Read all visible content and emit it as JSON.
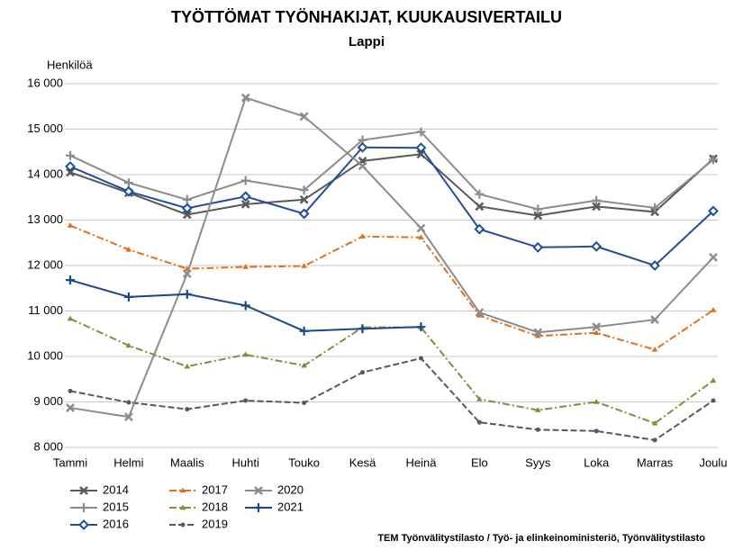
{
  "chart_data": {
    "type": "line",
    "title": "TYÖTTÖMAT TYÖNHAKIJAT, KUUKAUSIVERTAILU",
    "subtitle": "Lappi",
    "y_label": "Henkilöä",
    "source": "TEM Työnvälitystilasto / Työ- ja elinkeinoministeriö, Työnvälitystilasto",
    "categories": [
      "Tammi",
      "Helmi",
      "Maalis",
      "Huhti",
      "Touko",
      "Kesä",
      "Heinä",
      "Elo",
      "Syys",
      "Loka",
      "Marras",
      "Joulu"
    ],
    "ylim": [
      8000,
      16000
    ],
    "yticks": [
      {
        "value": 8000,
        "label": "8 000"
      },
      {
        "value": 9000,
        "label": "9 000"
      },
      {
        "value": 10000,
        "label": "10 000"
      },
      {
        "value": 11000,
        "label": "11 000"
      },
      {
        "value": 12000,
        "label": "12 000"
      },
      {
        "value": 13000,
        "label": "13 000"
      },
      {
        "value": 14000,
        "label": "14 000"
      },
      {
        "value": 15000,
        "label": "15 000"
      },
      {
        "value": 16000,
        "label": "16 000"
      }
    ],
    "grid": true,
    "legend": "bottom-left",
    "series": [
      {
        "name": "2014",
        "color": "#595959",
        "marker": "x",
        "values": [
          14050,
          13600,
          13120,
          13350,
          13450,
          14300,
          14450,
          13300,
          13100,
          13300,
          13180,
          14350
        ]
      },
      {
        "name": "2015",
        "color": "#8c8c8c",
        "marker": "plus",
        "values": [
          14420,
          13820,
          13450,
          13870,
          13660,
          14760,
          14940,
          13570,
          13240,
          13430,
          13270,
          14330
        ]
      },
      {
        "name": "2016",
        "color": "#1f4e9c",
        "marker": "diamond",
        "values": [
          14180,
          13630,
          13260,
          13520,
          13140,
          14600,
          14590,
          12800,
          12400,
          12420,
          12000,
          13200
        ]
      },
      {
        "name": "2017",
        "color": "#e07020",
        "marker": "triangle",
        "dash": "8 3 2 3",
        "values": [
          12880,
          12350,
          11930,
          11970,
          11990,
          12640,
          12620,
          10900,
          10450,
          10520,
          10150,
          11020
        ]
      },
      {
        "name": "2018",
        "color": "#77933c",
        "marker": "triangle",
        "dash": "8 3 2 3",
        "values": [
          10830,
          10240,
          9780,
          10040,
          9800,
          10640,
          10640,
          9060,
          8820,
          9000,
          8530,
          9470
        ]
      },
      {
        "name": "2019",
        "color": "#595959",
        "marker": "dot",
        "dash": "7 3",
        "values": [
          9240,
          8990,
          8840,
          9030,
          8980,
          9650,
          9960,
          8550,
          8390,
          8360,
          8160,
          9030
        ]
      },
      {
        "name": "2020",
        "color": "#8c8c8c",
        "marker": "x",
        "values": [
          8870,
          8670,
          11820,
          15690,
          15280,
          14190,
          12820,
          10970,
          10530,
          10650,
          10810,
          12180
        ]
      },
      {
        "name": "2021",
        "color": "#1a4a8c",
        "marker": "plus",
        "values": [
          11680,
          11310,
          11370,
          11120,
          10560,
          10610,
          10650,
          null,
          null,
          null,
          null,
          null
        ]
      }
    ]
  }
}
